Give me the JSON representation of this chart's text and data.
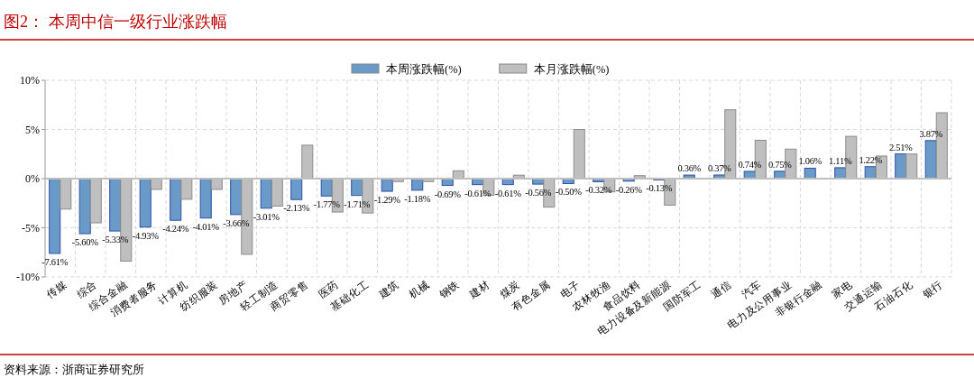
{
  "chart_data": {
    "type": "bar",
    "title": "图2：  本周中信一级行业涨跌幅",
    "categories": [
      "传媒",
      "综合",
      "综合金融",
      "消费者服务",
      "计算机",
      "纺织服装",
      "房地产",
      "轻工制造",
      "商贸零售",
      "医药",
      "基础化工",
      "建筑",
      "机械",
      "钢铁",
      "建材",
      "煤炭",
      "有色金属",
      "电子",
      "农林牧渔",
      "食品饮料",
      "电力设备及新能源",
      "国防军工",
      "通信",
      "汽车",
      "电力及公用事业",
      "非银行金融",
      "家电",
      "交通运输",
      "石油石化",
      "银行"
    ],
    "series": [
      {
        "name": "本周涨跌幅(%)",
        "color": "#6a9bc8",
        "values": [
          -7.61,
          -5.6,
          -5.33,
          -4.93,
          -4.24,
          -4.01,
          -3.66,
          -3.01,
          -2.13,
          -1.77,
          -1.71,
          -1.29,
          -1.18,
          -0.69,
          -0.61,
          -0.61,
          -0.56,
          -0.5,
          -0.32,
          -0.26,
          -0.13,
          0.36,
          0.37,
          0.74,
          0.75,
          1.06,
          1.11,
          1.22,
          2.51,
          3.87
        ],
        "value_labels": [
          "-7.61%",
          "-5.60%",
          "-5.33%",
          "-4.93%",
          "-4.24%",
          "-4.01%",
          "-3.66%",
          "-3.01%",
          "-2.13%",
          "-1.77%",
          "-1.71%",
          "-1.29%",
          "-1.18%",
          "-0.69%",
          "-0.61%",
          "-0.61%",
          "-0.56%",
          "-0.50%",
          "-0.32%",
          "-0.26%",
          "-0.13%",
          "0.36%",
          "0.37%",
          "0.74%",
          "0.75%",
          "1.06%",
          "1.11%",
          "1.22%",
          "2.51%",
          "3.87%"
        ]
      },
      {
        "name": "本月涨跌幅(%)",
        "color": "#bfbfbf",
        "values": [
          -3.1,
          -4.5,
          -8.4,
          -1.1,
          -2.1,
          -1.1,
          -7.7,
          -2.8,
          3.4,
          -3.4,
          -3.5,
          -0.3,
          -0.3,
          0.8,
          -1.7,
          0.35,
          -2.9,
          5.0,
          -1.35,
          0.3,
          -2.7,
          0.05,
          7.0,
          3.9,
          3.0,
          -0.05,
          4.3,
          2.3,
          2.5,
          6.7
        ]
      }
    ],
    "ylim": [
      -10,
      10
    ],
    "yticks": [
      {
        "value": -10,
        "label": "-10%"
      },
      {
        "value": -5,
        "label": "-5%"
      },
      {
        "value": 0,
        "label": "0%"
      },
      {
        "value": 5,
        "label": "5%"
      },
      {
        "value": 10,
        "label": "10%"
      }
    ],
    "grid": true,
    "legend": "top",
    "annotations": [
      "资料来源：浙商证券研究所"
    ]
  }
}
